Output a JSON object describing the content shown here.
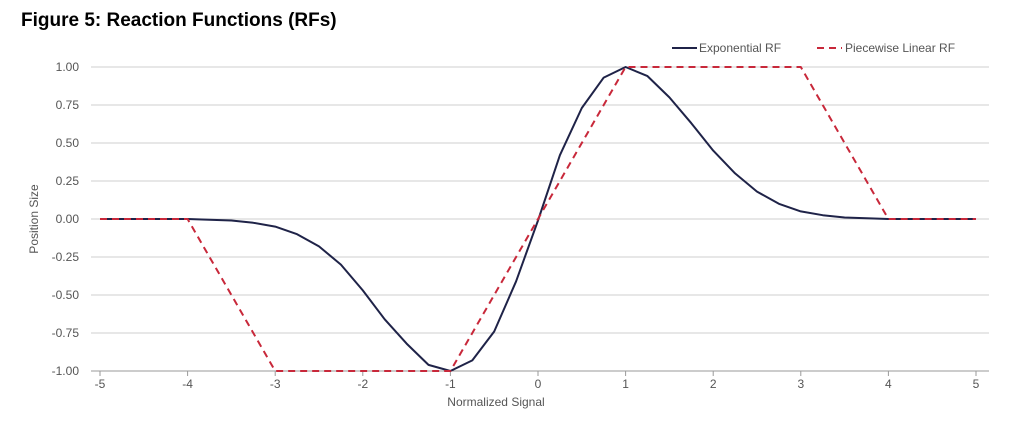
{
  "figure": {
    "title": "Figure 5: Reaction Functions (RFs)"
  },
  "chart_data": {
    "type": "line",
    "xlabel": "Normalized Signal",
    "ylabel": "Position Size",
    "xlim": [
      -5,
      5
    ],
    "ylim": [
      -1,
      1
    ],
    "x_ticks": [
      -5,
      -4,
      -3,
      -2,
      -1,
      0,
      1,
      2,
      3,
      4,
      5
    ],
    "x_tick_labels": [
      "-5",
      "-4",
      "-3",
      "-2",
      "-1",
      "0",
      "1",
      "2",
      "3",
      "4",
      "5"
    ],
    "y_ticks": [
      1,
      0.75,
      0.5,
      0.25,
      0,
      -0.25,
      -0.5,
      -0.75,
      -1
    ],
    "y_tick_labels": [
      "1.00",
      "0.75",
      "0.50",
      "0.25",
      "0.00",
      "-0.25",
      "-0.50",
      "-0.75",
      "-1.00"
    ],
    "grid": "horizontal",
    "legend_position": "top-right",
    "series": [
      {
        "name": "Exponential RF",
        "color": "#1f2348",
        "style": "solid",
        "x": [
          -5,
          -4.5,
          -4,
          -3.75,
          -3.5,
          -3.25,
          -3,
          -2.75,
          -2.5,
          -2.25,
          -2,
          -1.75,
          -1.5,
          -1.25,
          -1,
          -0.75,
          -0.5,
          -0.25,
          0,
          0.25,
          0.5,
          0.75,
          1,
          1.25,
          1.5,
          1.75,
          2,
          2.25,
          2.5,
          2.75,
          3,
          3.25,
          3.5,
          3.75,
          4,
          4.5,
          5
        ],
        "y": [
          0,
          0,
          0,
          -0.005,
          -0.01,
          -0.025,
          -0.05,
          -0.1,
          -0.18,
          -0.3,
          -0.47,
          -0.66,
          -0.82,
          -0.96,
          -1,
          -0.93,
          -0.74,
          -0.41,
          -0.01,
          0.42,
          0.73,
          0.93,
          1,
          0.94,
          0.8,
          0.63,
          0.45,
          0.3,
          0.18,
          0.1,
          0.05,
          0.025,
          0.01,
          0.005,
          0,
          0,
          0
        ]
      },
      {
        "name": "Piecewise Linear RF",
        "color": "#c8283a",
        "style": "dashed",
        "x": [
          -5,
          -4,
          -3,
          -1,
          1,
          3,
          4,
          5
        ],
        "y": [
          0,
          0,
          -1,
          -1,
          1,
          1,
          0,
          0
        ]
      }
    ]
  }
}
